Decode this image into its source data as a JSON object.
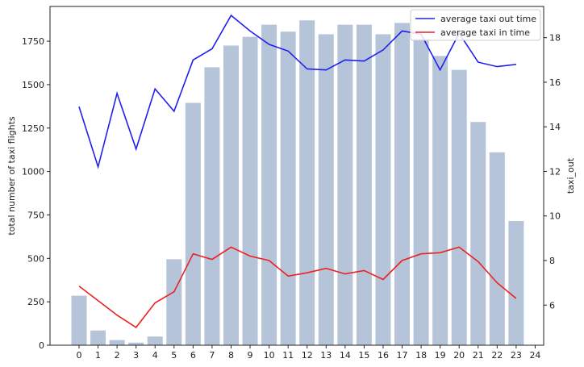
{
  "chart_data": {
    "type": "bar",
    "categories": [
      "0",
      "1",
      "2",
      "3",
      "4",
      "5",
      "6",
      "7",
      "8",
      "9",
      "10",
      "11",
      "12",
      "13",
      "14",
      "15",
      "16",
      "17",
      "18",
      "19",
      "20",
      "21",
      "22",
      "23"
    ],
    "extra_x_tick": "24",
    "ylabel_left": "total number of taxi flights",
    "ylabel_right": "taxi_out",
    "ylim_left": [
      0,
      1950
    ],
    "ylim_right": [
      4.2,
      19.4
    ],
    "yticks_left": [
      0,
      250,
      500,
      750,
      1000,
      1250,
      1500,
      1750
    ],
    "yticks_right": [
      6,
      8,
      10,
      12,
      14,
      16,
      18
    ],
    "bars": {
      "color": "#b5c4d8",
      "values": [
        285,
        85,
        30,
        15,
        50,
        495,
        1395,
        1600,
        1725,
        1775,
        1845,
        1805,
        1870,
        1790,
        1845,
        1845,
        1790,
        1855,
        1765,
        1665,
        1585,
        1285,
        1110,
        715
      ]
    },
    "series": [
      {
        "name": "average taxi out time",
        "color": "#2020ee",
        "axis": "right",
        "values": [
          14.9,
          12.2,
          15.5,
          13.0,
          15.7,
          14.7,
          17.0,
          17.5,
          19.0,
          18.3,
          17.7,
          17.4,
          16.6,
          16.55,
          17.0,
          16.95,
          17.45,
          18.3,
          18.15,
          16.55,
          18.2,
          16.9,
          16.7,
          16.8
        ]
      },
      {
        "name": "average taxi in time",
        "color": "#ee2020",
        "axis": "right",
        "values": [
          6.85,
          6.2,
          5.55,
          5.0,
          6.1,
          6.6,
          8.3,
          8.05,
          8.6,
          8.2,
          8.0,
          7.3,
          7.45,
          7.65,
          7.4,
          7.55,
          7.15,
          8.0,
          8.3,
          8.35,
          8.6,
          7.95,
          7.0,
          6.3
        ]
      }
    ],
    "legend_placement": "top-right",
    "grid": false
  }
}
